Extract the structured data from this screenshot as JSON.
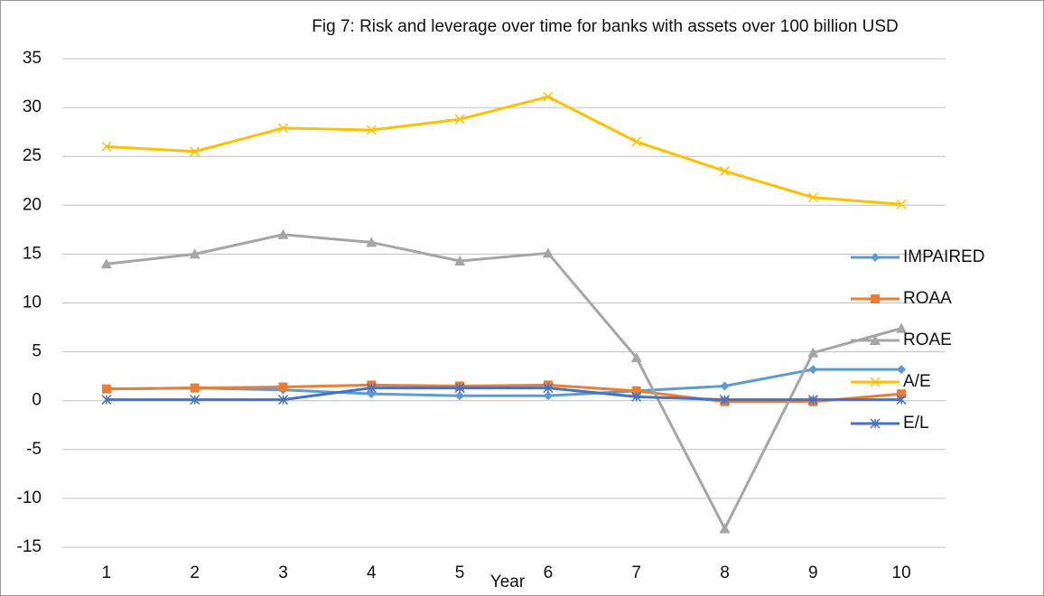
{
  "chart_data": {
    "type": "line",
    "title": "Fig 7: Risk and leverage over time for banks with assets over 100 billion USD",
    "x_label": "Year",
    "categories": [
      "1",
      "2",
      "3",
      "4",
      "5",
      "6",
      "7",
      "8",
      "9",
      "10"
    ],
    "ylim": [
      -15,
      35
    ],
    "yticks": [
      -15,
      -10,
      -5,
      0,
      5,
      10,
      15,
      20,
      25,
      30,
      35
    ],
    "grid": true,
    "legend": "right",
    "series": [
      {
        "name": "IMPAIRED",
        "color": "#5b9bd5",
        "marker": "diamond",
        "values": [
          1.2,
          1.3,
          1.1,
          0.7,
          0.5,
          0.5,
          1.0,
          1.5,
          3.2,
          3.2
        ]
      },
      {
        "name": "ROAA",
        "color": "#ed7d31",
        "marker": "square",
        "values": [
          1.2,
          1.3,
          1.4,
          1.6,
          1.5,
          1.6,
          1.0,
          -0.1,
          -0.1,
          0.7
        ]
      },
      {
        "name": "ROAE",
        "color": "#a5a5a5",
        "marker": "triangle",
        "values": [
          14,
          15,
          17,
          16.2,
          14.3,
          15.1,
          4.4,
          -13.1,
          4.9,
          7.4
        ]
      },
      {
        "name": "A/E",
        "color": "#ffc000",
        "marker": "x",
        "values": [
          26,
          25.5,
          27.9,
          27.7,
          28.8,
          31.1,
          26.5,
          23.5,
          20.8,
          20.1
        ]
      },
      {
        "name": "E/L",
        "color": "#4472c4",
        "marker": "star",
        "values": [
          0.1,
          0.1,
          0.1,
          1.3,
          1.3,
          1.3,
          0.4,
          0.1,
          0.1,
          0.1
        ]
      }
    ]
  }
}
